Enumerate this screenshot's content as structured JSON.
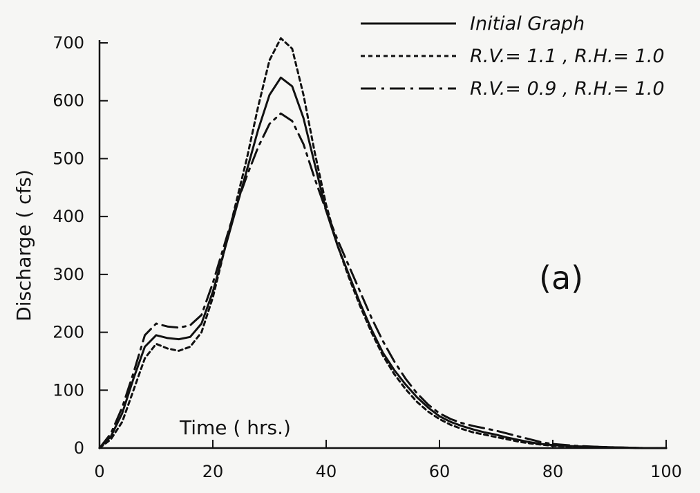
{
  "chart_data": {
    "type": "line",
    "title": "",
    "xlabel": "Time ( hrs.)",
    "ylabel": "Discharge ( cfs)",
    "panel_label": "(a)",
    "xlim": [
      0,
      100
    ],
    "ylim": [
      0,
      700
    ],
    "xticks": [
      0,
      20,
      40,
      60,
      80,
      100
    ],
    "yticks": [
      0,
      100,
      200,
      300,
      400,
      500,
      600,
      700
    ],
    "grid": false,
    "legend_position": "top-right",
    "legend_entries": [
      {
        "series": "Initial Graph",
        "label": "Initial Graph"
      },
      {
        "series": "R.V. = 1.1, R.H. = 1.0",
        "label": "R.V.= 1.1 ,  R.H.= 1.0"
      },
      {
        "series": "R.V. = 0.9, R.H. = 1.0",
        "label": "R.V.= 0.9 ,  R.H.= 1.0"
      }
    ],
    "series": [
      {
        "name": "Initial Graph",
        "style": "solid",
        "color": "#111111",
        "x": [
          0,
          2,
          4,
          6,
          8,
          10,
          12,
          14,
          16,
          18,
          20,
          22,
          24,
          26,
          28,
          30,
          32,
          34,
          36,
          38,
          40,
          42,
          44,
          46,
          48,
          50,
          52,
          54,
          56,
          58,
          60,
          62,
          64,
          66,
          68,
          70,
          72,
          74,
          76,
          78,
          80,
          84,
          88,
          92,
          96,
          100
        ],
        "y": [
          0,
          20,
          60,
          120,
          175,
          195,
          190,
          188,
          192,
          215,
          270,
          340,
          410,
          480,
          550,
          610,
          640,
          625,
          570,
          490,
          410,
          350,
          300,
          250,
          205,
          165,
          135,
          110,
          88,
          70,
          55,
          45,
          38,
          32,
          27,
          23,
          18,
          14,
          10,
          7,
          5,
          3,
          2,
          1,
          0,
          0
        ]
      },
      {
        "name": "R.V. = 1.1, R.H. = 1.0",
        "style": "dotted",
        "color": "#111111",
        "x": [
          0,
          2,
          4,
          6,
          8,
          10,
          12,
          14,
          16,
          18,
          20,
          22,
          24,
          26,
          28,
          30,
          32,
          34,
          36,
          38,
          40,
          42,
          44,
          46,
          48,
          50,
          52,
          54,
          56,
          58,
          60,
          62,
          64,
          66,
          68,
          70,
          72,
          74,
          76,
          78,
          80,
          84,
          88,
          92,
          96,
          100
        ],
        "y": [
          0,
          15,
          45,
          100,
          155,
          180,
          172,
          168,
          175,
          200,
          260,
          340,
          420,
          500,
          590,
          670,
          708,
          690,
          610,
          510,
          420,
          350,
          295,
          245,
          200,
          160,
          128,
          102,
          80,
          63,
          50,
          40,
          33,
          27,
          23,
          19,
          15,
          11,
          8,
          6,
          4,
          2,
          1,
          1,
          0,
          0
        ]
      },
      {
        "name": "R.V. = 0.9, R.H. = 1.0",
        "style": "dashdot",
        "color": "#111111",
        "x": [
          0,
          2,
          4,
          6,
          8,
          10,
          12,
          14,
          16,
          18,
          20,
          22,
          24,
          26,
          28,
          30,
          32,
          34,
          36,
          38,
          40,
          42,
          44,
          46,
          48,
          50,
          52,
          54,
          56,
          58,
          60,
          62,
          64,
          66,
          68,
          70,
          72,
          74,
          76,
          78,
          80,
          84,
          88,
          92,
          96,
          100
        ],
        "y": [
          0,
          25,
          70,
          130,
          195,
          215,
          210,
          208,
          212,
          230,
          285,
          350,
          415,
          470,
          520,
          560,
          578,
          565,
          525,
          465,
          410,
          360,
          315,
          270,
          225,
          185,
          150,
          120,
          95,
          75,
          60,
          50,
          43,
          38,
          34,
          30,
          25,
          20,
          15,
          10,
          7,
          4,
          2,
          1,
          0,
          0
        ]
      }
    ]
  }
}
